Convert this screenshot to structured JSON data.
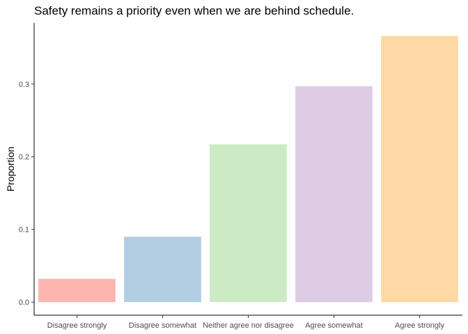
{
  "chart_data": {
    "type": "bar",
    "title": "Safety remains a priority even when we are behind schedule.",
    "xlabel": "",
    "ylabel": "Proportion",
    "categories": [
      "Disagree strongly",
      "Disagree somewhat",
      "Neither agree nor disagree",
      "Agree somewhat",
      "Agree strongly"
    ],
    "values": [
      0.032,
      0.09,
      0.217,
      0.297,
      0.366
    ],
    "colors": [
      "#fbb4ae",
      "#b3cde3",
      "#ccebc5",
      "#decbe4",
      "#fed9a6"
    ],
    "yticks": [
      0.0,
      0.1,
      0.2,
      0.3
    ],
    "ytick_labels": [
      "0.0",
      "0.1",
      "0.2",
      "0.3"
    ],
    "ylim": [
      -0.018,
      0.384
    ],
    "grid": false,
    "legend": "none"
  }
}
